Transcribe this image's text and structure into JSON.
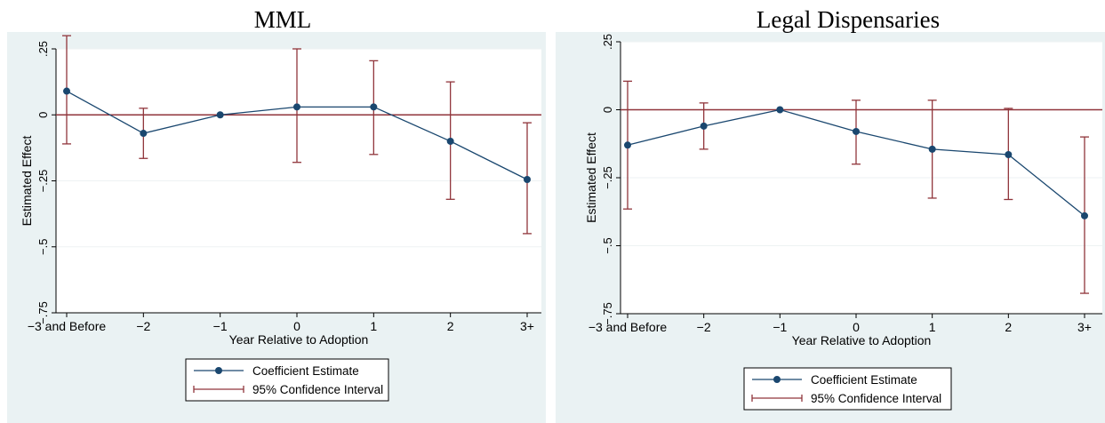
{
  "chart_data": [
    {
      "type": "line",
      "title": "MML",
      "xlabel": "Year Relative to Adoption",
      "ylabel": "Estimated Effect",
      "categories": [
        "−3 and Before",
        "−2",
        "−1",
        "0",
        "1",
        "2",
        "3+"
      ],
      "ylim": [
        -0.75,
        0.25
      ],
      "yticks": [
        -0.75,
        -0.5,
        -0.25,
        0,
        0.25
      ],
      "ytick_labels": [
        "−.75",
        "−.5",
        "−.25",
        "0",
        ".25"
      ],
      "reference_line": 0,
      "series": [
        {
          "name": "Coefficient Estimate",
          "values": [
            0.09,
            -0.07,
            0.0,
            0.03,
            0.03,
            -0.1,
            -0.245
          ],
          "ci_low": [
            -0.11,
            -0.165,
            0.0,
            -0.18,
            -0.15,
            -0.32,
            -0.45
          ],
          "ci_high": [
            0.3,
            0.025,
            0.0,
            0.25,
            0.205,
            0.125,
            -0.03
          ]
        }
      ],
      "legend": {
        "placement": "bottom",
        "items": [
          "Coefficient Estimate",
          "95% Confidence Interval"
        ]
      },
      "grid": true,
      "colors": {
        "series": "#1a476f",
        "ci": "#90353b",
        "background": "#eaf2f3",
        "grid": "#ffffff"
      }
    },
    {
      "type": "line",
      "title": "Legal Dispensaries",
      "xlabel": "Year Relative to Adoption",
      "ylabel": "Estimated Effect",
      "categories": [
        "−3 and Before",
        "−2",
        "−1",
        "0",
        "1",
        "2",
        "3+"
      ],
      "ylim": [
        -0.75,
        0.25
      ],
      "yticks": [
        -0.75,
        -0.5,
        -0.25,
        0,
        0.25
      ],
      "ytick_labels": [
        "−.75",
        "−.5",
        "−.25",
        "0",
        ".25"
      ],
      "reference_line": 0,
      "series": [
        {
          "name": "Coefficient Estimate",
          "values": [
            -0.13,
            -0.06,
            0.0,
            -0.08,
            -0.145,
            -0.165,
            -0.39
          ],
          "ci_low": [
            -0.365,
            -0.145,
            0.0,
            -0.2,
            -0.325,
            -0.33,
            -0.675
          ],
          "ci_high": [
            0.105,
            0.025,
            0.0,
            0.035,
            0.035,
            0.005,
            -0.1
          ]
        }
      ],
      "legend": {
        "placement": "bottom",
        "items": [
          "Coefficient Estimate",
          "95% Confidence Interval"
        ]
      },
      "grid": true,
      "colors": {
        "series": "#1a476f",
        "ci": "#90353b",
        "background": "#eaf2f3",
        "grid": "#ffffff"
      }
    }
  ]
}
